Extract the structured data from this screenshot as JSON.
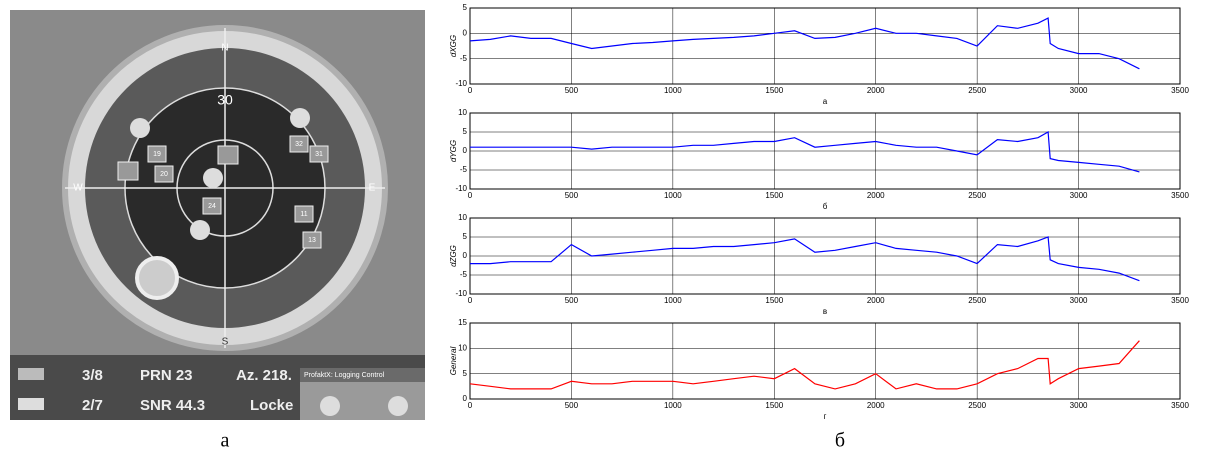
{
  "left_panel": {
    "elevation": "30",
    "compass": [
      "N",
      "E",
      "S",
      "W"
    ],
    "satellites": [
      "19",
      "20",
      "24",
      "32",
      "31",
      "11",
      "13"
    ],
    "status": [
      "3/8",
      "PRN 23",
      "Az. 218.",
      "2/7",
      "SNR 44.3",
      "Locke"
    ],
    "window": "ProfaktX: Logging Control",
    "caption": "а"
  },
  "right_caption": "б",
  "chart_data": [
    {
      "type": "line",
      "y_label": "dXGG",
      "x_label": "а",
      "color": "#0000ff",
      "grid": true,
      "xlim": [
        0,
        3500
      ],
      "xticks": [
        0,
        500,
        1000,
        1500,
        2000,
        2500,
        3000,
        3500
      ],
      "ylim": [
        -10,
        5
      ],
      "yticks": [
        -10,
        -5,
        0,
        5
      ],
      "x": [
        0,
        100,
        200,
        300,
        400,
        500,
        600,
        700,
        800,
        900,
        1000,
        1100,
        1200,
        1300,
        1400,
        1500,
        1600,
        1700,
        1800,
        1900,
        2000,
        2100,
        2200,
        2300,
        2400,
        2500,
        2600,
        2700,
        2800,
        2850,
        2860,
        2900,
        3000,
        3100,
        3200,
        3300
      ],
      "values": [
        -1.5,
        -1.2,
        -0.5,
        -1,
        -1,
        -2,
        -3,
        -2.5,
        -2,
        -1.8,
        -1.5,
        -1.2,
        -1,
        -0.8,
        -0.5,
        0,
        0.5,
        -1,
        -0.8,
        0,
        1,
        0,
        0,
        -0.5,
        -1,
        -2.5,
        1.5,
        1,
        2,
        3,
        -2,
        -3,
        -4,
        -4,
        -5,
        -7
      ]
    },
    {
      "type": "line",
      "y_label": "dYGG",
      "x_label": "б",
      "color": "#0000ff",
      "grid": true,
      "xlim": [
        0,
        3500
      ],
      "xticks": [
        0,
        500,
        1000,
        1500,
        2000,
        2500,
        3000,
        3500
      ],
      "ylim": [
        -10,
        10
      ],
      "yticks": [
        -10,
        -5,
        0,
        5,
        10
      ],
      "x": [
        0,
        100,
        200,
        300,
        400,
        500,
        600,
        700,
        800,
        900,
        1000,
        1100,
        1200,
        1300,
        1400,
        1500,
        1600,
        1700,
        1800,
        1900,
        2000,
        2100,
        2200,
        2300,
        2400,
        2500,
        2600,
        2700,
        2800,
        2850,
        2860,
        2900,
        3000,
        3100,
        3200,
        3300
      ],
      "values": [
        1,
        1,
        1,
        1,
        1,
        1,
        0.5,
        1,
        1,
        1,
        1,
        1.5,
        1.5,
        2,
        2.5,
        2.5,
        3.5,
        1,
        1.5,
        2,
        2.5,
        1.5,
        1,
        1,
        0,
        -1,
        3,
        2.5,
        3.5,
        5,
        -2,
        -2.5,
        -3,
        -3.5,
        -4,
        -5.5
      ]
    },
    {
      "type": "line",
      "y_label": "dZGG",
      "x_label": "в",
      "color": "#0000ff",
      "grid": true,
      "xlim": [
        0,
        3500
      ],
      "xticks": [
        0,
        500,
        1000,
        1500,
        2000,
        2500,
        3000,
        3500
      ],
      "ylim": [
        -10,
        10
      ],
      "yticks": [
        -10,
        -5,
        0,
        5,
        10
      ],
      "x": [
        0,
        100,
        200,
        300,
        400,
        500,
        600,
        700,
        800,
        900,
        1000,
        1100,
        1200,
        1300,
        1400,
        1500,
        1600,
        1700,
        1800,
        1900,
        2000,
        2100,
        2200,
        2300,
        2400,
        2500,
        2600,
        2700,
        2800,
        2850,
        2860,
        2900,
        3000,
        3100,
        3200,
        3300
      ],
      "values": [
        -2,
        -2,
        -1.5,
        -1.5,
        -1.5,
        3,
        0,
        0.5,
        1,
        1.5,
        2,
        2,
        2.5,
        2.5,
        3,
        3.5,
        4.5,
        1,
        1.5,
        2.5,
        3.5,
        2,
        1.5,
        1,
        0,
        -2,
        3,
        2.5,
        4,
        5,
        -1,
        -2,
        -3,
        -3.5,
        -4.5,
        -6.5
      ]
    },
    {
      "type": "line",
      "y_label": "General",
      "x_label": "г",
      "color": "#ff0000",
      "grid": true,
      "xlim": [
        0,
        3500
      ],
      "xticks": [
        0,
        500,
        1000,
        1500,
        2000,
        2500,
        3000,
        3500
      ],
      "ylim": [
        0,
        15
      ],
      "yticks": [
        0,
        5,
        10,
        15
      ],
      "x": [
        0,
        100,
        200,
        300,
        400,
        500,
        600,
        700,
        800,
        900,
        1000,
        1100,
        1200,
        1300,
        1400,
        1500,
        1600,
        1700,
        1800,
        1900,
        2000,
        2100,
        2200,
        2300,
        2400,
        2500,
        2600,
        2700,
        2800,
        2850,
        2860,
        2900,
        3000,
        3100,
        3200,
        3300
      ],
      "values": [
        3,
        2.5,
        2,
        2,
        2,
        3.5,
        3,
        3,
        3.5,
        3.5,
        3.5,
        3,
        3.5,
        4,
        4.5,
        4,
        6,
        3,
        2,
        3,
        5,
        2,
        3,
        2,
        2,
        3,
        5,
        6,
        8,
        8,
        3,
        4,
        6,
        6.5,
        7,
        11.5
      ]
    }
  ]
}
